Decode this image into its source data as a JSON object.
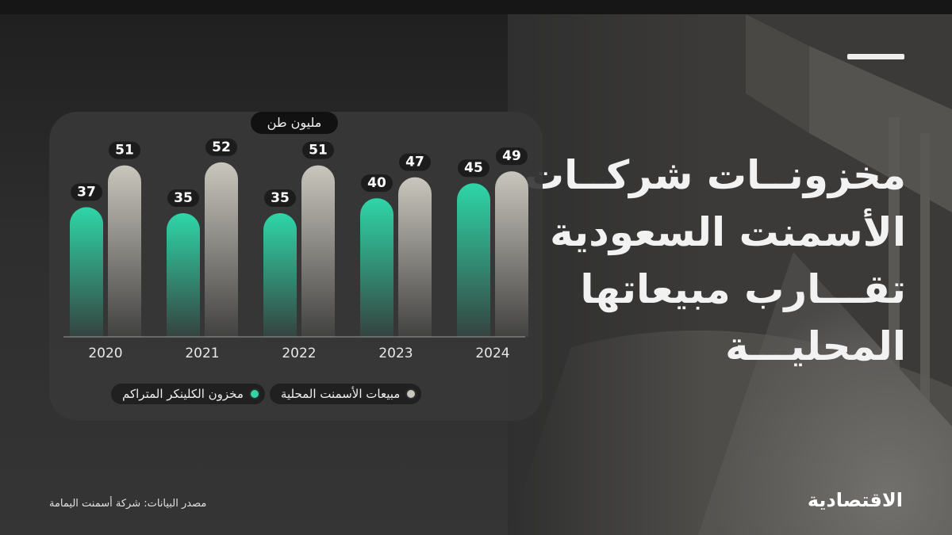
{
  "headline": {
    "lines": [
      "مخزونــات شركــات",
      "الأسمنت السعودية",
      "تقـــارب مبيعاتها",
      "المحليـــة"
    ]
  },
  "unit_label": "مليون طن",
  "legend": [
    {
      "label": "مبيعات الأسمنت المحلية",
      "color": "#c9c6bd"
    },
    {
      "label": "مخزون الكلينكر المتراكم",
      "color": "#2fd6a8"
    }
  ],
  "source": "مصدر البيانات: شركة أسمنت اليمامة",
  "logo": "الاقتصادية",
  "colors": {
    "clinker": "#2fd6a8",
    "sales": "#c9c6bd",
    "label_bg": "#1c1c1c"
  },
  "chart_data": {
    "type": "bar",
    "categories": [
      "2020",
      "2021",
      "2022",
      "2023",
      "2024"
    ],
    "series": [
      {
        "name": "مخزون الكلينكر المتراكم",
        "values": [
          37,
          35,
          35,
          40,
          45
        ]
      },
      {
        "name": "مبيعات الأسمنت المحلية",
        "values": [
          51,
          52,
          51,
          47,
          49
        ]
      }
    ],
    "ylabel": "مليون طن",
    "ylim": [
      0,
      52
    ],
    "grid": false,
    "legend_position": "bottom"
  }
}
